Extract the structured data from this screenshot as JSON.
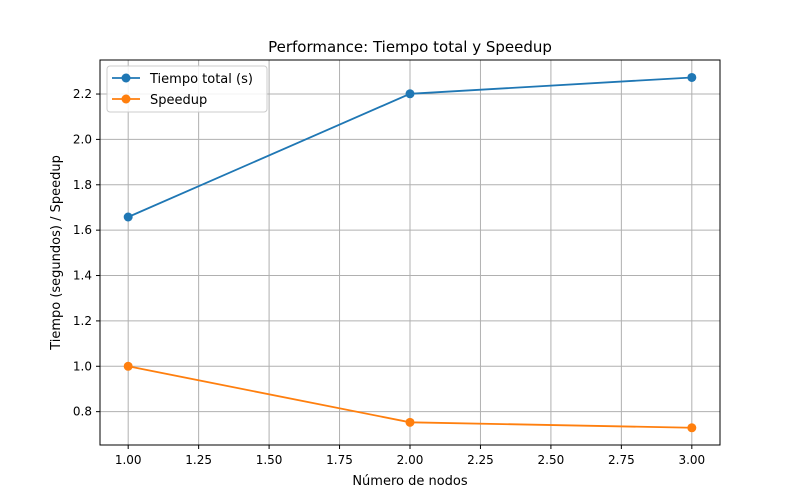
{
  "chart_data": {
    "type": "line",
    "title": "Performance: Tiempo total y Speedup",
    "xlabel": "Número de nodos",
    "ylabel": "Tiempo (segundos) / Speedup",
    "x": [
      1,
      2,
      3
    ],
    "xlim": [
      0.9,
      3.1
    ],
    "ylim": [
      0.653,
      2.35
    ],
    "xticks": [
      "1.00",
      "1.25",
      "1.50",
      "1.75",
      "2.00",
      "2.25",
      "2.50",
      "2.75",
      "3.00"
    ],
    "yticks": [
      "0.8",
      "1.0",
      "1.2",
      "1.4",
      "1.6",
      "1.8",
      "2.0",
      "2.2"
    ],
    "grid": true,
    "legend_position": "top-left",
    "series": [
      {
        "name": "Tiempo total (s)",
        "values": [
          1.658,
          2.201,
          2.273
        ],
        "color": "#1f77b4",
        "marker": "circle"
      },
      {
        "name": "Speedup",
        "values": [
          1.0,
          0.753,
          0.729
        ],
        "color": "#ff7f0e",
        "marker": "circle"
      }
    ]
  }
}
